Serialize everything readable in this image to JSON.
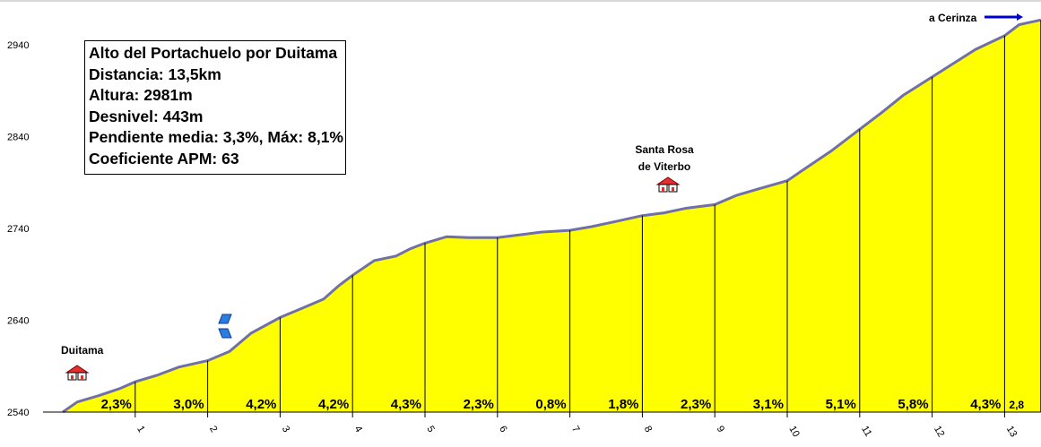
{
  "info": {
    "title": "Alto del Portachuelo por Duitama",
    "distance": "Distancia: 13,5km",
    "height": "Altura: 2981m",
    "gain": "Desnivel: 443m",
    "gradient": "Pendiente media: 3,3%, Máx: 8,1%",
    "apm": "Coeficiente APM: 63"
  },
  "places": {
    "start": "Duitama",
    "mid_line1": "Santa Rosa",
    "mid_line2": "de Viterbo",
    "destination": "a Cerinza"
  },
  "colors": {
    "fill": "#ffff00",
    "profile_line": "#7070a8",
    "arrow": "#0000cc",
    "house_roof": "#e03030",
    "bike_icon": "#2a7de1"
  },
  "chart_data": {
    "type": "area",
    "title": "Alto del Portachuelo por Duitama",
    "xlabel": "",
    "ylabel": "",
    "xlim": [
      0,
      13.5
    ],
    "ylim": [
      2540,
      2981
    ],
    "y_ticks": [
      2540,
      2640,
      2740,
      2840,
      2940
    ],
    "x_ticks": [
      1,
      2,
      3,
      4,
      5,
      6,
      7,
      8,
      9,
      10,
      11,
      12,
      13
    ],
    "series": [
      {
        "x": [
          0,
          0.2,
          0.5,
          0.8,
          1.0,
          1.3,
          1.6,
          2.0,
          2.3,
          2.6,
          3.0,
          3.3,
          3.6,
          3.8,
          4.0,
          4.3,
          4.6,
          4.8,
          5.0,
          5.3,
          5.6,
          6.0,
          6.3,
          6.6,
          7.0,
          7.3,
          7.6,
          8.0,
          8.3,
          8.6,
          9.0,
          9.3,
          9.6,
          10.0,
          10.3,
          10.6,
          11.0,
          11.3,
          11.6,
          12.0,
          12.3,
          12.6,
          13.0,
          13.2,
          13.5
        ],
        "y": [
          2540,
          2551,
          2558,
          2566,
          2573,
          2580,
          2589,
          2596,
          2606,
          2626,
          2643,
          2653,
          2663,
          2677,
          2689,
          2705,
          2710,
          2718,
          2724,
          2731,
          2730,
          2730,
          2733,
          2736,
          2738,
          2742,
          2747,
          2754,
          2757,
          2762,
          2766,
          2776,
          2783,
          2792,
          2808,
          2824,
          2848,
          2866,
          2885,
          2905,
          2920,
          2935,
          2950,
          2962,
          2967
        ]
      }
    ],
    "segment_gradients": [
      "2,3%",
      "3,0%",
      "4,2%",
      "4,2%",
      "4,3%",
      "2,3%",
      "0,8%",
      "1,8%",
      "2,3%",
      "3,1%",
      "5,1%",
      "5,8%",
      "4,3%",
      "2,8"
    ],
    "annotations": [
      {
        "label": "Duitama",
        "x": 0.45,
        "icon": "house-icon"
      },
      {
        "label": "Santa Rosa de Viterbo",
        "x": 8.4,
        "icon": "house-icon"
      },
      {
        "label": "bike-icon",
        "x": 2.25
      },
      {
        "label": "a Cerinza",
        "x": 13.5,
        "icon": "arrow-right-icon"
      }
    ]
  }
}
